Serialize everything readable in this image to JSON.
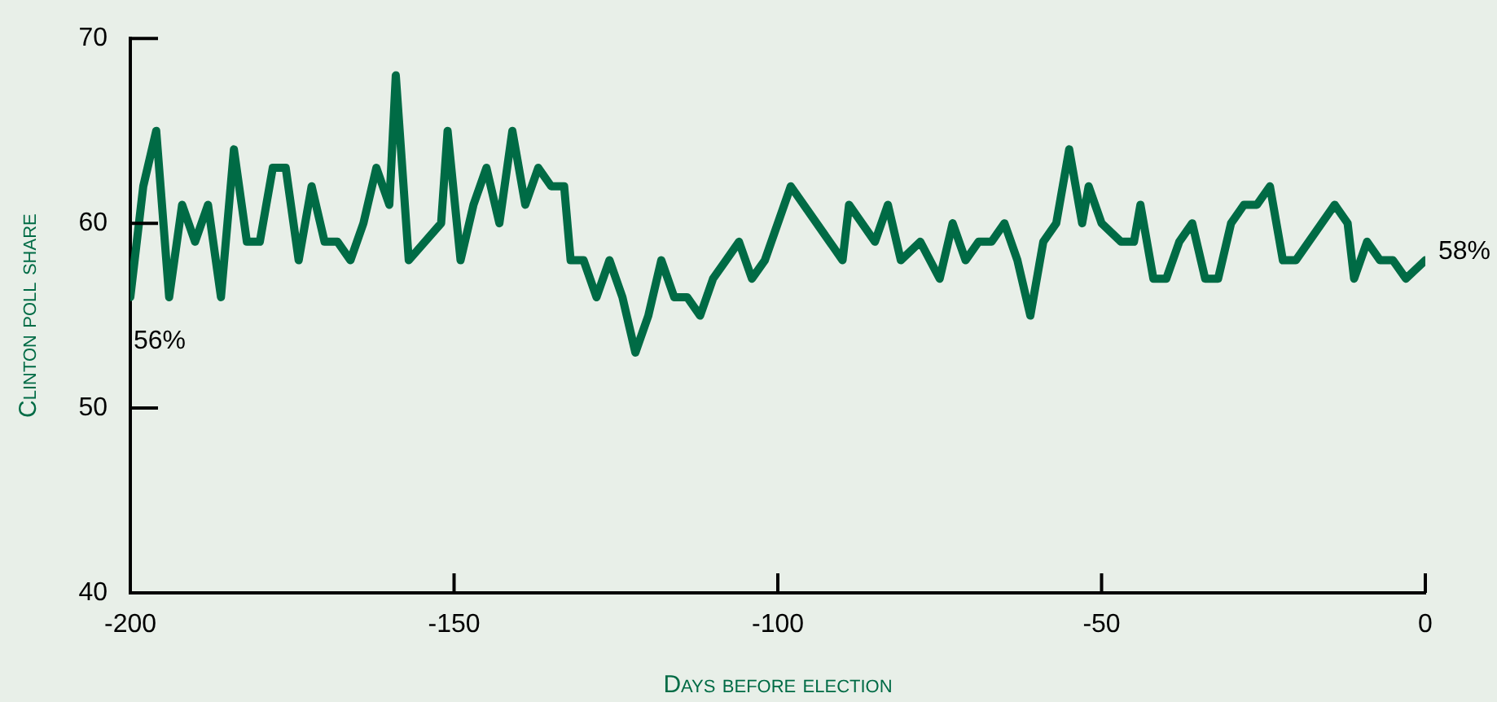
{
  "chart_data": {
    "type": "line",
    "xlabel": "Days before election",
    "ylabel": "Clinton poll share",
    "xlim": [
      -200,
      0
    ],
    "xticks": [
      -200,
      -150,
      -100,
      -50,
      0
    ],
    "ylim": [
      40,
      70
    ],
    "yticks": [
      40,
      50,
      60,
      70
    ],
    "grid": false,
    "legend": false,
    "marker": "none",
    "line_style": "solid",
    "series": [
      {
        "color": "#006b45",
        "x": [
          -200,
          -198,
          -196,
          -194,
          -192,
          -190,
          -188,
          -186,
          -184,
          -182,
          -180,
          -178,
          -176,
          -174,
          -172,
          -170,
          -168,
          -166,
          -164,
          -162,
          -160,
          -159,
          -157,
          -152,
          -151,
          -149,
          -147,
          -145,
          -143,
          -141,
          -139,
          -137,
          -135,
          -133,
          -132,
          -130,
          -128,
          -126,
          -124,
          -122,
          -120,
          -118,
          -116,
          -114,
          -112,
          -110,
          -108,
          -106,
          -104,
          -102,
          -98,
          -90,
          -89,
          -85,
          -83,
          -81,
          -78,
          -75,
          -73,
          -71,
          -69,
          -67,
          -65,
          -63,
          -61,
          -59,
          -57,
          -55,
          -53,
          -52,
          -50,
          -47,
          -45,
          -44,
          -42,
          -40,
          -38,
          -36,
          -34,
          -32,
          -30,
          -28,
          -26,
          -24,
          -22,
          -20,
          -14,
          -12,
          -11,
          -9,
          -7,
          -5,
          -3,
          0
        ],
        "values": [
          56,
          62,
          65,
          56,
          61,
          59,
          61,
          56,
          64,
          59,
          59,
          63,
          63,
          58,
          62,
          59,
          59,
          58,
          60,
          63,
          61,
          68,
          58,
          60,
          65,
          58,
          61,
          63,
          60,
          65,
          61,
          63,
          62,
          62,
          58,
          58,
          56,
          58,
          56,
          53,
          55,
          58,
          56,
          56,
          55,
          57,
          58,
          59,
          57,
          58,
          62,
          58,
          61,
          59,
          61,
          58,
          59,
          57,
          60,
          58,
          59,
          59,
          60,
          58,
          55,
          59,
          60,
          64,
          60,
          62,
          60,
          59,
          59,
          61,
          57,
          57,
          59,
          60,
          57,
          57,
          60,
          61,
          61,
          62,
          58,
          58,
          61,
          60,
          57,
          59,
          58,
          58,
          57,
          58
        ]
      }
    ],
    "annotations": [
      {
        "text": "56%",
        "x": -200,
        "y": 56
      },
      {
        "text": "58%",
        "x": 0,
        "y": 58
      }
    ]
  }
}
